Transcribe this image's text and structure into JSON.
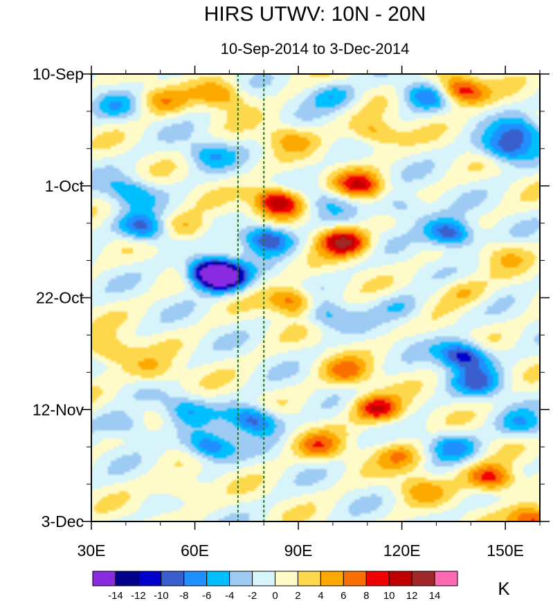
{
  "chart_data": {
    "type": "heatmap",
    "title": "HIRS UTWV: 10N - 20N",
    "subtitle": "10-Sep-2014 to 3-Dec-2014",
    "x_axis": {
      "range": [
        30,
        160
      ],
      "unit": "degrees East",
      "ticks": [
        {
          "value": 30,
          "label": "30E"
        },
        {
          "value": 60,
          "label": "60E"
        },
        {
          "value": 90,
          "label": "90E"
        },
        {
          "value": 120,
          "label": "120E"
        },
        {
          "value": 150,
          "label": "150E"
        }
      ],
      "minor_step": 10
    },
    "y_axis": {
      "range_days": [
        0,
        84
      ],
      "direction": "time increases downward",
      "ticks": [
        {
          "value": 0,
          "label": "10-Sep"
        },
        {
          "value": 21,
          "label": "1-Oct"
        },
        {
          "value": 42,
          "label": "22-Oct"
        },
        {
          "value": 63,
          "label": "12-Nov"
        },
        {
          "value": 84,
          "label": "3-Dec"
        }
      ],
      "minor_step": 7
    },
    "reference_lines": [
      {
        "x": 72.5,
        "style": "dashed",
        "color": "#1a7a1a"
      },
      {
        "x": 80,
        "style": "dashed",
        "color": "#1a7a1a"
      }
    ],
    "colorbar": {
      "unit": "K",
      "levels": [
        -14,
        -12,
        -10,
        -8,
        -6,
        -4,
        -2,
        0,
        2,
        4,
        6,
        8,
        10,
        12,
        14
      ],
      "level_labels": [
        "-14",
        "-12",
        "-10",
        "-8",
        "-6",
        "-4",
        "-2",
        "0",
        "2",
        "4",
        "6",
        "8",
        "10",
        "12",
        "14"
      ],
      "colors": [
        "#8a2be2",
        "#00008b",
        "#0000cd",
        "#3a5fcd",
        "#1e90ff",
        "#00bfff",
        "#9ecbf4",
        "#d8f4fb",
        "#fffbc8",
        "#fed84c",
        "#fcaa00",
        "#fa7000",
        "#f00000",
        "#c00000",
        "#a02828",
        "#ff69b4"
      ]
    },
    "features": [
      {
        "x": 66,
        "y": 37.5,
        "value": -15
      },
      {
        "x": 67,
        "y": 38,
        "value": -12
      },
      {
        "x": 138,
        "y": 53,
        "value": -12
      },
      {
        "x": 134,
        "y": 30,
        "value": -11
      },
      {
        "x": 81,
        "y": 31,
        "value": -11
      },
      {
        "x": 77,
        "y": 65,
        "value": -10
      },
      {
        "x": 45,
        "y": 29,
        "value": -9
      },
      {
        "x": 64,
        "y": 70,
        "value": -9
      },
      {
        "x": 150,
        "y": 14,
        "value": -9
      },
      {
        "x": 127,
        "y": 4,
        "value": -7
      },
      {
        "x": 142,
        "y": 58,
        "value": -7
      },
      {
        "x": 155,
        "y": 11,
        "value": -7
      },
      {
        "x": 97,
        "y": 45,
        "value": -6
      },
      {
        "x": 41,
        "y": 22,
        "value": -6
      },
      {
        "x": 64,
        "y": 15,
        "value": -5
      },
      {
        "x": 100,
        "y": 4,
        "value": -5
      },
      {
        "x": 40,
        "y": 66,
        "value": -5
      },
      {
        "x": 57,
        "y": 63,
        "value": -5
      },
      {
        "x": 155,
        "y": 66,
        "value": -5
      },
      {
        "x": 135,
        "y": 70,
        "value": -6
      },
      {
        "x": 120,
        "y": 25,
        "value": -5
      },
      {
        "x": 37,
        "y": 6,
        "value": -4
      },
      {
        "x": 98,
        "y": 24,
        "value": -4
      },
      {
        "x": 120,
        "y": 44,
        "value": -4
      },
      {
        "x": 84,
        "y": 24,
        "value": 13
      },
      {
        "x": 103,
        "y": 31.5,
        "value": 12
      },
      {
        "x": 137,
        "y": 3,
        "value": 11
      },
      {
        "x": 113,
        "y": 63,
        "value": 10
      },
      {
        "x": 108,
        "y": 21,
        "value": 9
      },
      {
        "x": 146,
        "y": 76,
        "value": 10
      },
      {
        "x": 89,
        "y": 43,
        "value": 9
      },
      {
        "x": 96,
        "y": 70,
        "value": 6
      },
      {
        "x": 35,
        "y": 52,
        "value": 6
      },
      {
        "x": 120,
        "y": 72,
        "value": 5
      },
      {
        "x": 104,
        "y": 56,
        "value": 6
      },
      {
        "x": 68,
        "y": 4,
        "value": 6
      },
      {
        "x": 50,
        "y": 5,
        "value": 5
      },
      {
        "x": 58,
        "y": 29,
        "value": 5
      },
      {
        "x": 112,
        "y": 11,
        "value": 6
      },
      {
        "x": 159,
        "y": 84,
        "value": 10
      },
      {
        "x": 87,
        "y": 12,
        "value": 4
      },
      {
        "x": 48,
        "y": 56,
        "value": 4
      },
      {
        "x": 138,
        "y": 41,
        "value": 4
      },
      {
        "x": 125,
        "y": 78,
        "value": 4
      },
      {
        "x": 56,
        "y": 78,
        "value": 4
      },
      {
        "x": 150,
        "y": 34,
        "value": 3
      }
    ]
  }
}
